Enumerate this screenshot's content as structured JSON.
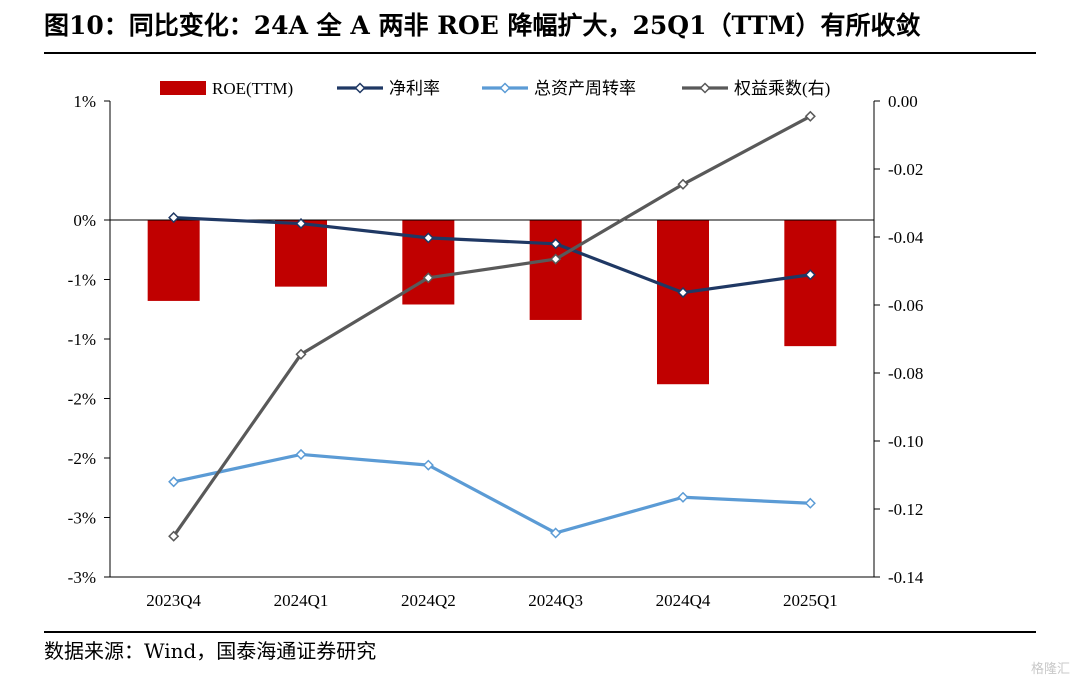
{
  "title": "图10：同比变化：24A 全 A 两非 ROE 降幅扩大，25Q1（TTM）有所收敛",
  "source": "数据来源：Wind，国泰海通证券研究",
  "watermark": "格隆汇",
  "colors": {
    "roe_bar": "#c00000",
    "net_margin": "#1f3864",
    "asset_turnover": "#5b9bd5",
    "equity_multiplier": "#595959"
  },
  "chart_data": {
    "type": "bar",
    "categories": [
      "2023Q4",
      "2024Q1",
      "2024Q2",
      "2024Q3",
      "2024Q4",
      "2025Q1"
    ],
    "left_axis": {
      "ticks": [
        1,
        0,
        -0.5,
        -1,
        -1.5,
        -2,
        -2.5,
        -3
      ],
      "tick_labels": [
        "1%",
        "0%",
        "-1%",
        "-1%",
        "-2%",
        "-2%",
        "-3%",
        "-3%"
      ],
      "ylim": [
        -3,
        1
      ]
    },
    "right_axis": {
      "ticks": [
        0,
        -0.02,
        -0.04,
        -0.06,
        -0.08,
        -0.1,
        -0.12,
        -0.14
      ],
      "tick_labels": [
        "0.00",
        "-0.02",
        "-0.04",
        "-0.06",
        "-0.08",
        "-0.10",
        "-0.12",
        "-0.14"
      ],
      "ylim": [
        -0.14,
        0
      ]
    },
    "series": [
      {
        "name": "ROE(TTM)",
        "kind": "bar",
        "axis": "left",
        "values": [
          -0.68,
          -0.56,
          -0.71,
          -0.84,
          -1.38,
          -1.06
        ]
      },
      {
        "name": "净利率",
        "kind": "line",
        "axis": "left",
        "values": [
          0.02,
          -0.03,
          -0.15,
          -0.2,
          -0.61,
          -0.46
        ]
      },
      {
        "name": "总资产周转率",
        "kind": "line",
        "axis": "left",
        "values": [
          -2.2,
          -1.97,
          -2.06,
          -2.63,
          -2.33,
          -2.38
        ]
      },
      {
        "name": "权益乘数(右)",
        "kind": "line",
        "axis": "right",
        "values": [
          -0.128,
          -0.0745,
          -0.052,
          -0.0465,
          -0.0245,
          -0.0045
        ]
      }
    ],
    "legend": "top",
    "grid": false
  }
}
